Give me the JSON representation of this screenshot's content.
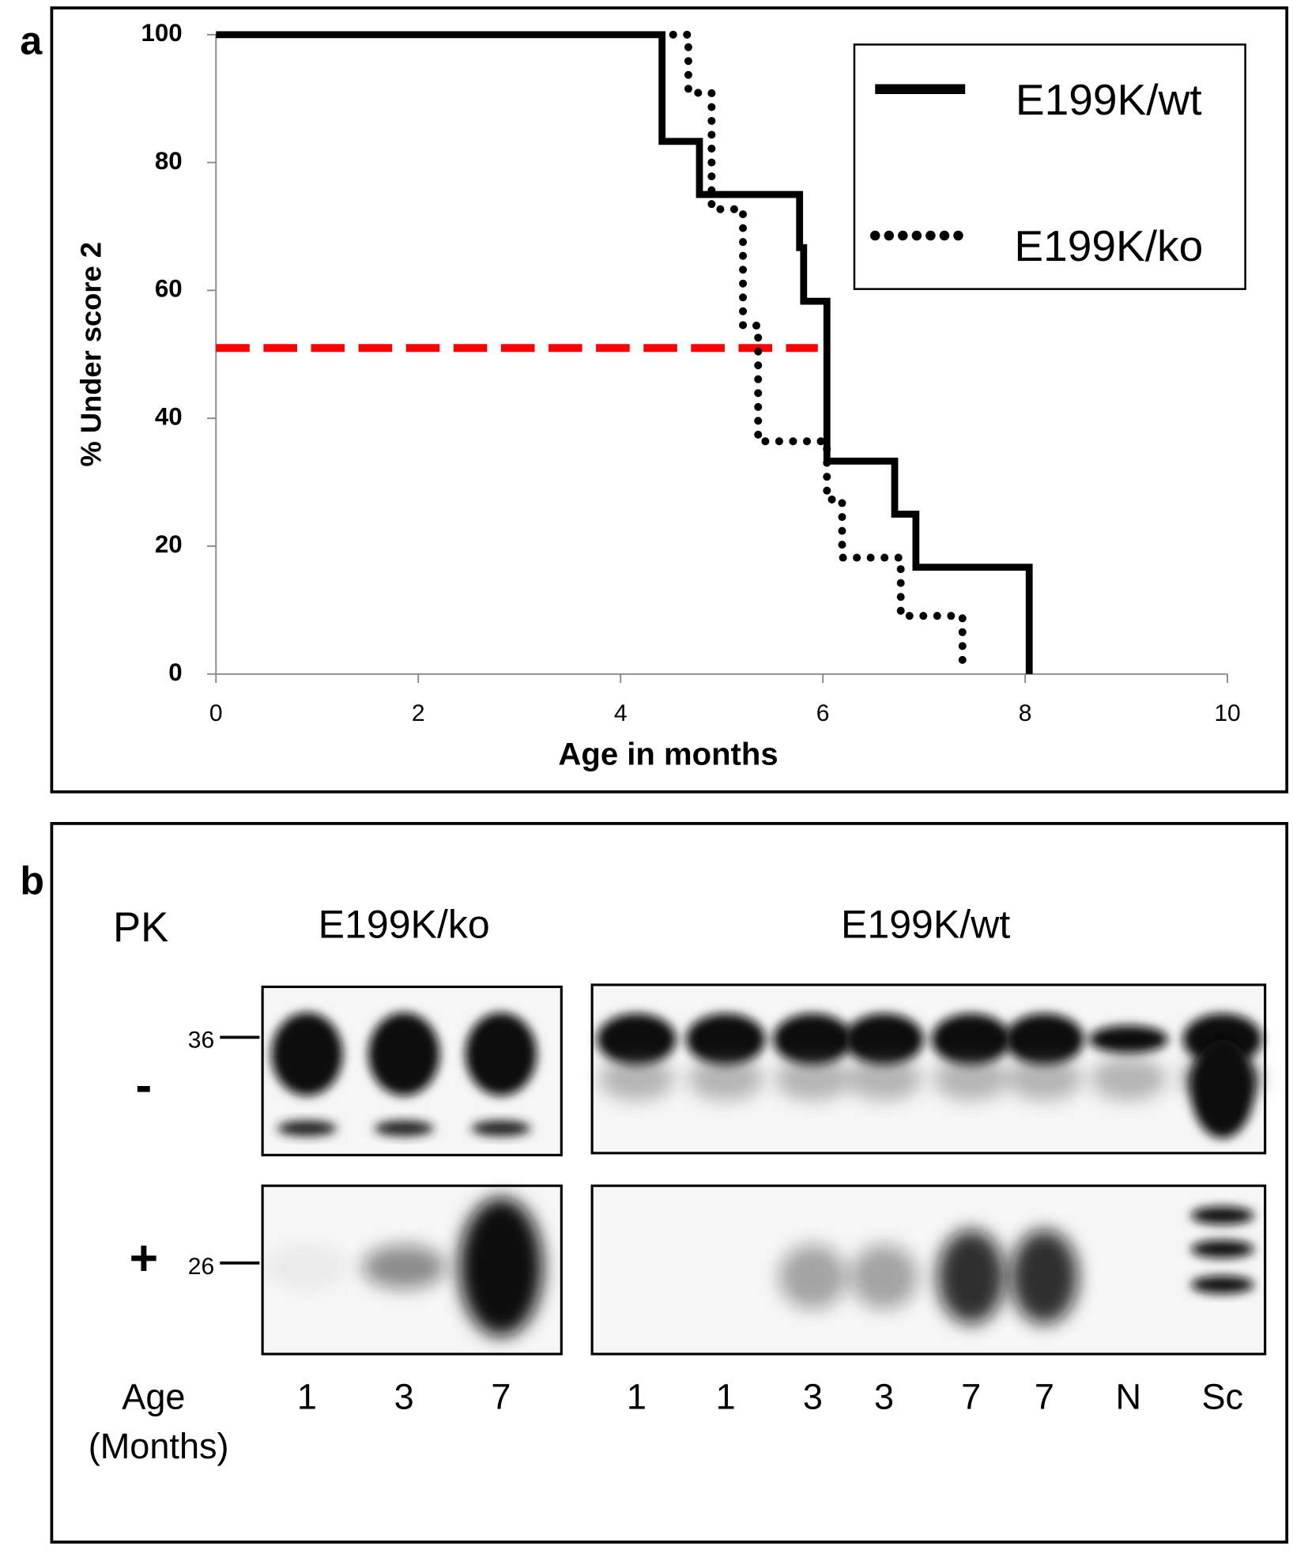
{
  "chart_data": {
    "type": "line",
    "panel_label": "a",
    "x_label": "Age in months",
    "y_label": "% Under score 2",
    "xlim": [
      0,
      10
    ],
    "xticks": [
      0,
      2,
      4,
      6,
      8,
      10
    ],
    "ylim": [
      0,
      100
    ],
    "yticks": [
      0,
      20,
      40,
      60,
      80,
      100
    ],
    "legend": "top-right",
    "series": [
      {
        "name": "E199K/wt",
        "color": "#000000",
        "style": "solid",
        "x": [
          0,
          4.41,
          4.41,
          4.78,
          4.78,
          5.77,
          5.77,
          5.81,
          5.81,
          6.04,
          6.04,
          6.71,
          6.71,
          6.92,
          6.92,
          8.04,
          8.04
        ],
        "values": [
          100,
          100,
          83.3,
          83.3,
          75,
          75,
          66.7,
          66.7,
          58.3,
          58.3,
          33.3,
          33.3,
          25,
          25,
          16.7,
          16.7,
          0
        ]
      },
      {
        "name": "E199K/ko",
        "color": "#000000",
        "style": "dotted",
        "x": [
          4.52,
          4.67,
          4.67,
          4.9,
          4.9,
          5.21,
          5.21,
          5.36,
          5.36,
          6.04,
          6.04,
          6.19,
          6.19,
          6.77,
          6.77,
          7.38,
          7.38
        ],
        "values": [
          100,
          100,
          90.9,
          90.9,
          72.7,
          72.7,
          54.5,
          54.5,
          36.4,
          36.4,
          27.3,
          27.3,
          18.2,
          18.2,
          9.1,
          9.1,
          2
        ]
      }
    ],
    "reference_line": {
      "color": "#ff0000",
      "x": [
        0,
        5.95
      ],
      "values": [
        51,
        51
      ]
    }
  },
  "blot": {
    "panel_label": "b",
    "treatment_label": "PK",
    "groups": [
      {
        "name": "E199K/ko",
        "lanes": [
          "1",
          "3",
          "7"
        ]
      },
      {
        "name": "E199K/wt",
        "lanes": [
          "1",
          "1",
          "3",
          "3",
          "7",
          "7",
          "N",
          "Sc"
        ]
      }
    ],
    "rows": [
      {
        "sign": "-",
        "marker": "36"
      },
      {
        "sign": "+",
        "marker": "26"
      }
    ],
    "age_label": [
      "Age",
      "(Months)"
    ]
  }
}
